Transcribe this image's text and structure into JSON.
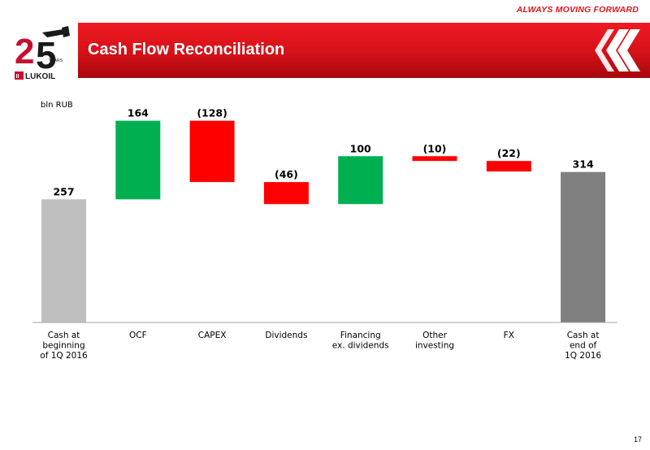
{
  "header": {
    "tagline": "ALWAYS MOVING FORWARD",
    "title": "Cash Flow Reconciliation",
    "logo": {
      "name": "LUKOIL",
      "badge_text": "25 YEARS"
    },
    "accent_color": "#e3141b"
  },
  "page_number": "17",
  "chart_data": {
    "type": "waterfall",
    "unit": "bln RUB",
    "categories": [
      [
        "Cash at",
        "beginning",
        "of 1Q 2016"
      ],
      [
        "OCF"
      ],
      [
        "CAPEX"
      ],
      [
        "Dividends"
      ],
      [
        "Financing",
        "ex. dividends"
      ],
      [
        "Other",
        "investing"
      ],
      [
        "FX"
      ],
      [
        "Cash at",
        "end of",
        "1Q 2016"
      ]
    ],
    "values": [
      257,
      164,
      -128,
      -46,
      100,
      -10,
      -22,
      314
    ],
    "labels": [
      "257",
      "164",
      "(128)",
      "(46)",
      "100",
      "(10)",
      "(22)",
      "314"
    ],
    "kinds": [
      "total",
      "delta",
      "delta",
      "delta",
      "delta",
      "delta",
      "delta",
      "total"
    ],
    "ylim": [
      0,
      540
    ],
    "grid": false,
    "colors": {
      "start_total": "#bfbfbf",
      "end_total": "#808080",
      "increase": "#00b050",
      "decrease": "#ff0000"
    }
  }
}
